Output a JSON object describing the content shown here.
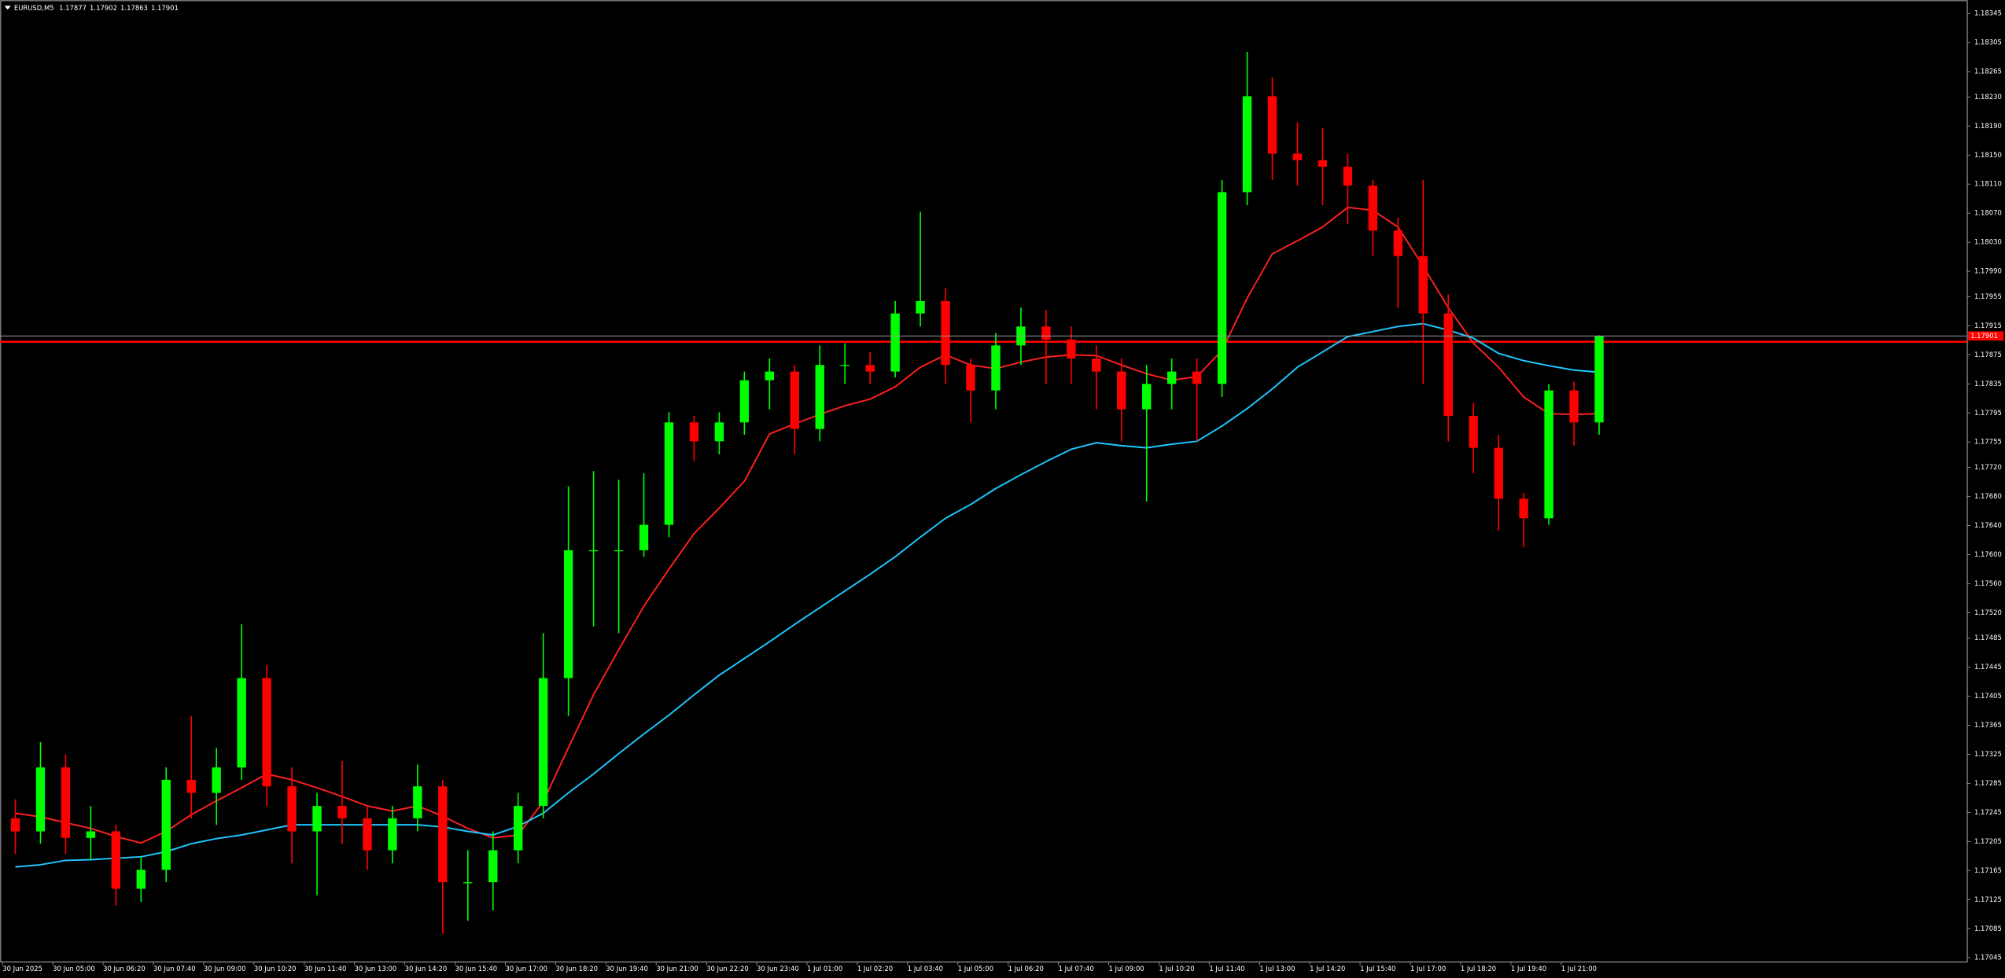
{
  "chart_data": {
    "type": "candlestick",
    "symbol": "EURUSD,M5",
    "header_ohlc": [
      1.17877,
      1.17902,
      1.17863,
      1.17901
    ],
    "background": "#000000",
    "up_color": "#00ff00",
    "down_color": "#ff0000",
    "grid": false,
    "ylim": [
      1.1704,
      1.1836
    ],
    "yticks": [
      1.18345,
      1.18305,
      1.18265,
      {
        "value": 1.1823,
        "label": "1.18230"
      },
      {
        "value": 1.1819,
        "label": "1.18190"
      },
      {
        "value": 1.1815,
        "label": "1.18150"
      },
      {
        "value": 1.1811,
        "label": "1.18110"
      },
      {
        "value": 1.1807,
        "label": "1.18070"
      },
      {
        "value": 1.1803,
        "label": "1.18030"
      },
      {
        "value": 1.1799,
        "label": "1.17990"
      },
      1.17955,
      1.17915,
      1.17875,
      1.17835,
      1.17795,
      1.17755,
      {
        "value": 1.1772,
        "label": "1.17720"
      },
      {
        "value": 1.1768,
        "label": "1.17680"
      },
      {
        "value": 1.1764,
        "label": "1.17640"
      },
      {
        "value": 1.176,
        "label": "1.17600"
      },
      {
        "value": 1.1756,
        "label": "1.17560"
      },
      {
        "value": 1.1752,
        "label": "1.17520"
      },
      1.17485,
      1.17445,
      1.17405,
      1.17365,
      1.17325,
      1.17285,
      1.17245,
      1.17205,
      1.17165,
      1.17125,
      1.17085,
      1.17045
    ],
    "x_labels": [
      "30 Jun 2025",
      "30 Jun 05:00",
      "30 Jun 06:20",
      "30 Jun 07:40",
      "30 Jun 09:00",
      "30 Jun 10:20",
      "30 Jun 11:40",
      "30 Jun 13:00",
      "30 Jun 14:20",
      "30 Jun 15:40",
      "30 Jun 17:00",
      "30 Jun 18:20",
      "30 Jun 19:40",
      "30 Jun 21:00",
      "30 Jun 22:20",
      "30 Jun 23:40",
      "1 Jul 01:00",
      "1 Jul 02:20",
      "1 Jul 03:40",
      "1 Jul 05:00",
      "1 Jul 06:20",
      "1 Jul 07:40",
      "1 Jul 09:00",
      "1 Jul 10:20",
      "1 Jul 11:40",
      "1 Jul 13:00",
      "1 Jul 14:20",
      "1 Jul 15:40",
      "1 Jul 17:00",
      "1 Jul 18:20",
      "1 Jul 19:40",
      "1 Jul 21:00"
    ],
    "open": [
      1.17237,
      1.17219,
      1.17307,
      1.1721,
      1.17219,
      1.1714,
      1.17166,
      1.1729,
      1.17272,
      1.17307,
      1.1743,
      1.17281,
      1.17219,
      1.17254,
      1.17237,
      1.17193,
      1.17237,
      1.17281,
      1.17149,
      1.17149,
      1.17193,
      1.17254,
      1.1743,
      1.17606,
      1.17606,
      1.17606,
      1.17641,
      1.17782,
      1.17756,
      1.17782,
      1.1784,
      1.17852,
      1.17773,
      1.17861,
      1.17861,
      1.17852,
      1.17932,
      1.17949,
      1.17861,
      1.17826,
      1.17888,
      1.17914,
      1.17896,
      1.1787,
      1.17852,
      1.178,
      1.17835,
      1.17852,
      1.17835,
      1.18099,
      1.18231,
      1.18152,
      1.18143,
      1.18134,
      1.18108,
      1.18046,
      1.18011,
      1.17932,
      1.17791,
      1.17747,
      1.17677,
      1.1765,
      1.17826,
      1.17782
    ],
    "high": [
      1.17263,
      1.17342,
      1.17325,
      1.17254,
      1.17228,
      1.17184,
      1.17307,
      1.17378,
      1.17334,
      1.17504,
      1.17448,
      1.17307,
      1.17272,
      1.17316,
      1.17254,
      1.17254,
      1.17311,
      1.1729,
      1.17193,
      1.17219,
      1.17272,
      1.17492,
      1.17694,
      1.17715,
      1.17703,
      1.17712,
      1.17796,
      1.17791,
      1.17796,
      1.17852,
      1.1787,
      1.17861,
      1.17888,
      1.17891,
      1.17879,
      1.17949,
      1.18072,
      1.17967,
      1.1787,
      1.17905,
      1.1794,
      1.17937,
      1.17914,
      1.17888,
      1.1787,
      1.17861,
      1.1787,
      1.1787,
      1.18116,
      1.18292,
      1.18257,
      1.18195,
      1.18187,
      1.18152,
      1.18116,
      1.18064,
      1.18116,
      1.17958,
      1.17809,
      1.17765,
      1.17685,
      1.17835,
      1.17838,
      1.17902
    ],
    "low": [
      1.17188,
      1.17202,
      1.17188,
      1.1718,
      1.17117,
      1.17122,
      1.17149,
      1.17237,
      1.17228,
      1.1729,
      1.17254,
      1.17175,
      1.17131,
      1.17202,
      1.17166,
      1.17175,
      1.17219,
      1.17078,
      1.17096,
      1.1711,
      1.17175,
      1.17237,
      1.17378,
      1.17501,
      1.17492,
      1.17597,
      1.17624,
      1.17729,
      1.17738,
      1.17765,
      1.178,
      1.17738,
      1.17756,
      1.17835,
      1.17835,
      1.17844,
      1.17914,
      1.17835,
      1.17782,
      1.178,
      1.17861,
      1.17835,
      1.17835,
      1.178,
      1.17756,
      1.17673,
      1.178,
      1.17756,
      1.17817,
      1.18081,
      1.18116,
      1.18108,
      1.18081,
      1.18055,
      1.18011,
      1.1794,
      1.17835,
      1.17756,
      1.17712,
      1.17633,
      1.1761,
      1.17641,
      1.1775,
      1.17765
    ],
    "close": [
      1.17219,
      1.17307,
      1.1721,
      1.17219,
      1.1714,
      1.17166,
      1.1729,
      1.17272,
      1.17307,
      1.1743,
      1.17281,
      1.17219,
      1.17254,
      1.17237,
      1.17193,
      1.17237,
      1.17281,
      1.17149,
      1.17149,
      1.17193,
      1.17254,
      1.1743,
      1.17606,
      1.17606,
      1.17606,
      1.17641,
      1.17782,
      1.17756,
      1.17782,
      1.1784,
      1.17852,
      1.17773,
      1.17861,
      1.17861,
      1.17852,
      1.17932,
      1.17949,
      1.17861,
      1.17826,
      1.17888,
      1.17914,
      1.17896,
      1.1787,
      1.17852,
      1.178,
      1.17835,
      1.17852,
      1.17835,
      1.18099,
      1.18231,
      1.18152,
      1.18143,
      1.18134,
      1.18108,
      1.18046,
      1.18011,
      1.17932,
      1.17791,
      1.17747,
      1.17677,
      1.1765,
      1.17826,
      1.17782,
      1.17901
    ],
    "moving_averages": [
      {
        "color": "#ff2020",
        "values": [
          1.17244,
          1.17239,
          1.17231,
          1.17223,
          1.17212,
          1.17203,
          1.17219,
          1.17242,
          1.17261,
          1.17279,
          1.17298,
          1.1729,
          1.17279,
          1.17267,
          1.17254,
          1.17247,
          1.17254,
          1.1724,
          1.17223,
          1.1721,
          1.17214,
          1.1726,
          1.17334,
          1.17407,
          1.17469,
          1.17529,
          1.1758,
          1.17629,
          1.17664,
          1.17701,
          1.17766,
          1.1778,
          1.17793,
          1.17805,
          1.17814,
          1.17831,
          1.17858,
          1.17875,
          1.17861,
          1.17856,
          1.17865,
          1.17872,
          1.17875,
          1.17874,
          1.17861,
          1.17849,
          1.1784,
          1.17845,
          1.17881,
          1.17953,
          1.18014,
          1.18032,
          1.18051,
          1.18078,
          1.18074,
          1.18051,
          1.17997,
          1.1794,
          1.17891,
          1.17858,
          1.17817,
          1.17794,
          1.17793,
          1.17794
        ]
      },
      {
        "color": "#1ec8ff",
        "values": [
          1.1717,
          1.17173,
          1.17179,
          1.1718,
          1.17182,
          1.17184,
          1.17191,
          1.17202,
          1.17209,
          1.17214,
          1.17221,
          1.17228,
          1.17228,
          1.17228,
          1.17228,
          1.17228,
          1.17228,
          1.17225,
          1.17219,
          1.17214,
          1.17226,
          1.17244,
          1.17272,
          1.17298,
          1.17326,
          1.17353,
          1.17379,
          1.17407,
          1.17434,
          1.17457,
          1.1748,
          1.17504,
          1.17527,
          1.1755,
          1.17573,
          1.17597,
          1.17624,
          1.1765,
          1.17669,
          1.17691,
          1.1771,
          1.17728,
          1.17745,
          1.17754,
          1.1775,
          1.17747,
          1.17752,
          1.17756,
          1.17777,
          1.17801,
          1.17828,
          1.17858,
          1.17879,
          1.179,
          1.17907,
          1.17914,
          1.17918,
          1.17909,
          1.17898,
          1.17877,
          1.17867,
          1.1786,
          1.17854,
          1.17851
        ]
      }
    ],
    "hlines": [
      {
        "value": 1.17893,
        "color": "#ff0000"
      }
    ],
    "price_line_color": "#9a9a9a"
  }
}
